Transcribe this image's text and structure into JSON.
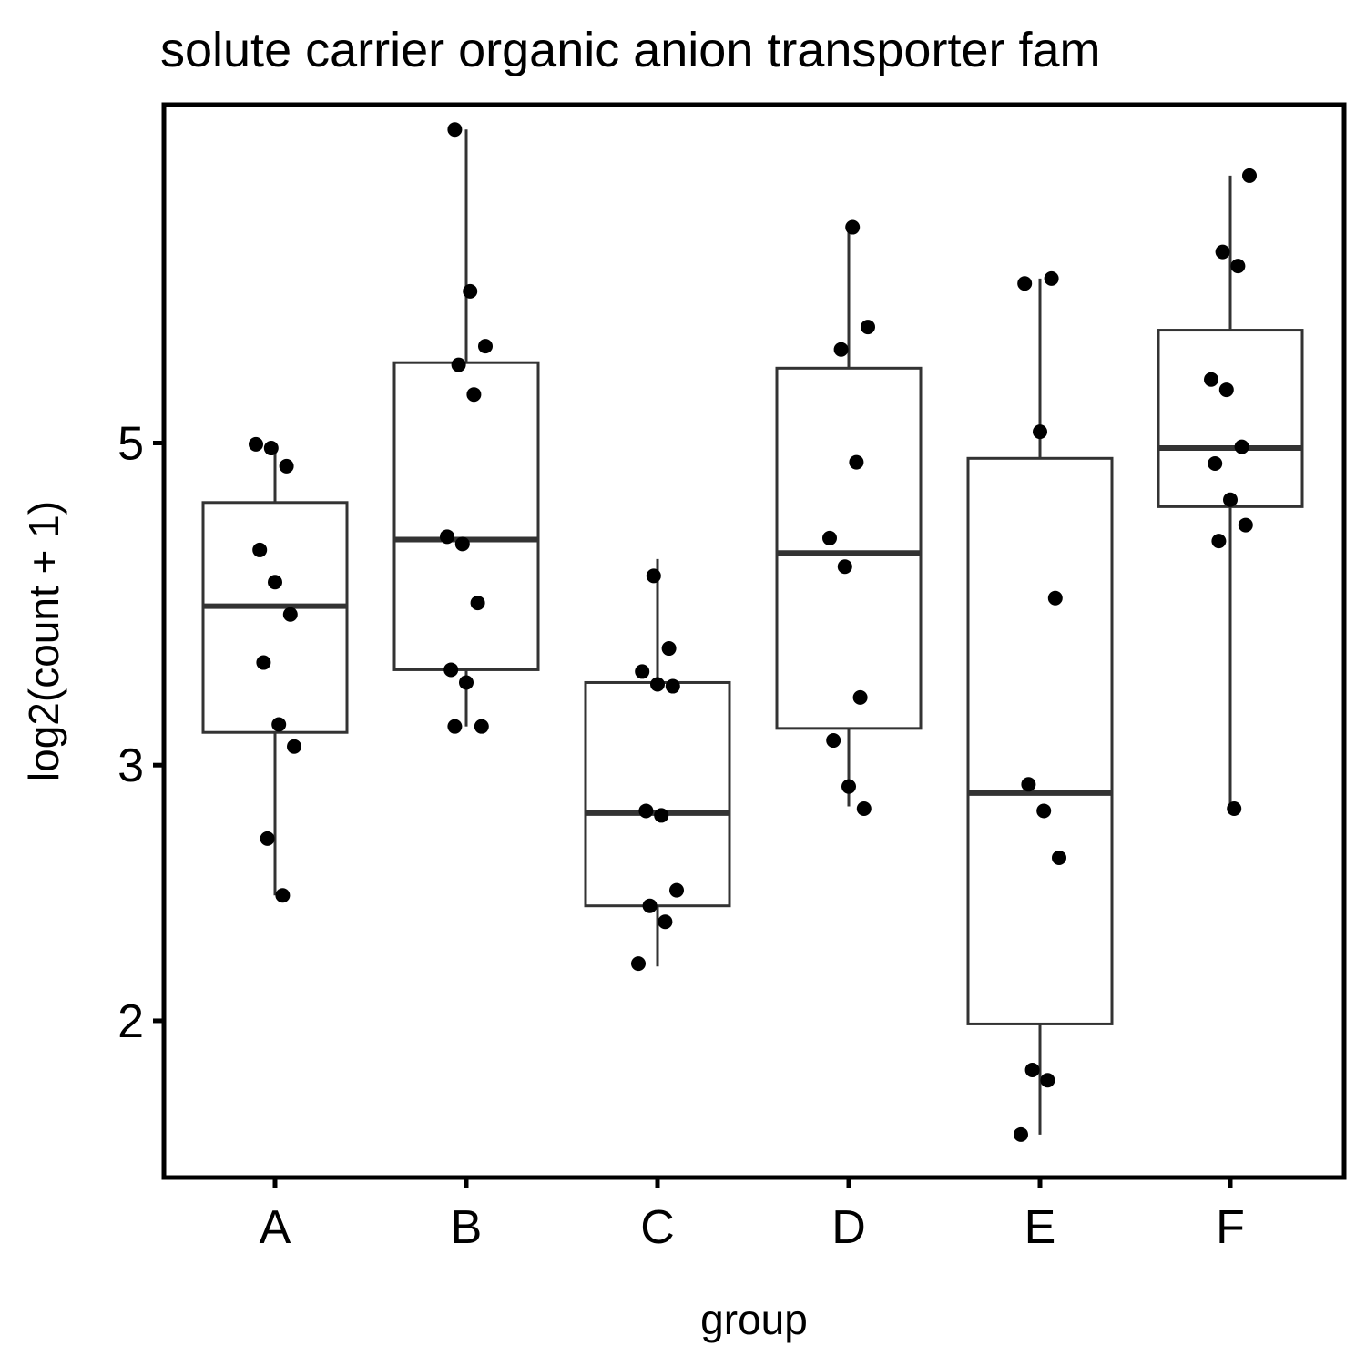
{
  "chart_data": {
    "type": "boxplot",
    "title": "solute carrier organic anion transporter fam",
    "xlabel": "group",
    "ylabel": "log2(count + 1)",
    "y_scale": "log2 of values shown on linear tick labels",
    "yticks": [
      2,
      3,
      5
    ],
    "ylim": [
      1.56,
      8.55
    ],
    "grid": false,
    "legend": "none",
    "categories": [
      "A",
      "B",
      "C",
      "D",
      "E",
      "F"
    ],
    "boxes": [
      {
        "group": "A",
        "lower_whisker": 2.44,
        "q1": 3.16,
        "median": 3.86,
        "q3": 4.55,
        "upper_whisker": 4.97
      },
      {
        "group": "B",
        "lower_whisker": 3.19,
        "q1": 3.49,
        "median": 4.29,
        "q3": 5.68,
        "upper_whisker": 8.22
      },
      {
        "group": "C",
        "lower_whisker": 2.18,
        "q1": 2.4,
        "median": 2.78,
        "q3": 3.42,
        "upper_whisker": 4.16
      },
      {
        "group": "D",
        "lower_whisker": 2.81,
        "q1": 3.18,
        "median": 4.2,
        "q3": 5.63,
        "upper_whisker": 7.04
      },
      {
        "group": "E",
        "lower_whisker": 1.67,
        "q1": 1.99,
        "median": 2.87,
        "q3": 4.88,
        "upper_whisker": 6.49
      },
      {
        "group": "F",
        "lower_whisker": 2.8,
        "q1": 4.52,
        "median": 4.96,
        "q3": 5.98,
        "upper_whisker": 7.64
      }
    ],
    "points": [
      {
        "group": "A",
        "values": [
          4.99,
          4.96,
          4.82,
          4.22,
          4.01,
          3.81,
          3.53,
          3.2,
          3.09,
          2.67,
          2.44
        ]
      },
      {
        "group": "B",
        "values": [
          8.22,
          6.36,
          5.83,
          5.66,
          5.4,
          4.31,
          4.26,
          3.88,
          3.49,
          3.42,
          3.19,
          3.19
        ]
      },
      {
        "group": "C",
        "values": [
          4.05,
          3.61,
          3.48,
          3.41,
          3.4,
          2.79,
          2.77,
          2.46,
          2.4,
          2.34,
          2.19
        ]
      },
      {
        "group": "D",
        "values": [
          7.04,
          6.01,
          5.8,
          4.85,
          4.3,
          4.11,
          3.34,
          3.12,
          2.9,
          2.8
        ]
      },
      {
        "group": "E",
        "values": [
          6.49,
          6.44,
          5.09,
          3.91,
          2.91,
          2.79,
          2.59,
          1.85,
          1.82,
          1.67
        ]
      },
      {
        "group": "F",
        "values": [
          7.64,
          6.77,
          6.62,
          5.53,
          5.44,
          4.97,
          4.84,
          4.57,
          4.39,
          4.28,
          2.8
        ]
      }
    ],
    "colors": {
      "box_outline": "#333333",
      "box_fill": "#ffffff",
      "point": "#000000",
      "axis": "#000000"
    }
  }
}
